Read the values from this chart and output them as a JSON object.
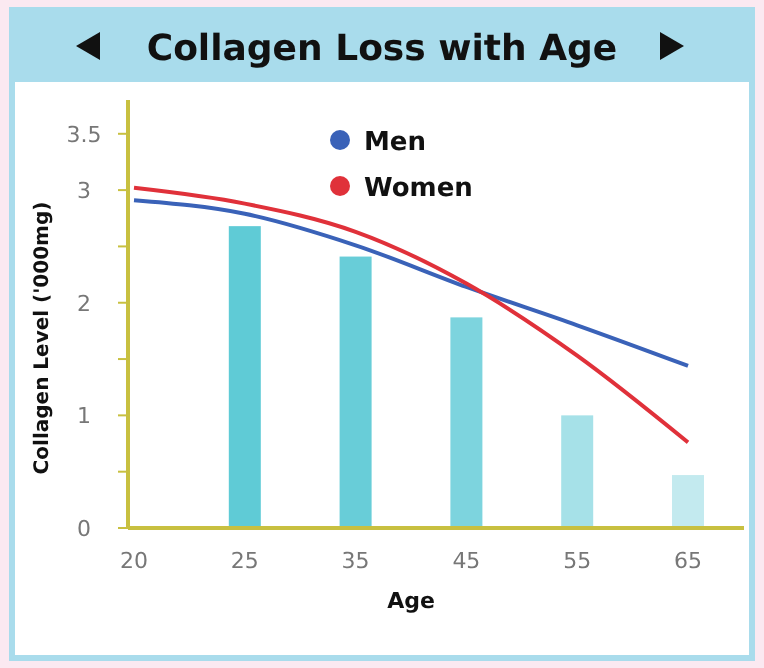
{
  "chart_data": {
    "type": "bar",
    "title": "Collagen Loss with Age",
    "xlabel": "Age",
    "ylabel": "Collagen Level ('000mg)",
    "categories": [
      "20",
      "25",
      "35",
      "45",
      "55",
      "65"
    ],
    "values": [
      null,
      2.68,
      2.41,
      1.87,
      1.0,
      0.47
    ],
    "colors": [
      null,
      "#5fcbd6",
      "#68cdd8",
      "#7dd4de",
      "#a6e1e8",
      "#c3eaef"
    ],
    "series": [
      {
        "name": "Men",
        "type": "line",
        "color": "#3a62b8",
        "values": [
          2.91,
          2.79,
          2.51,
          2.14,
          1.8,
          1.44
        ]
      },
      {
        "name": "Women",
        "type": "line",
        "color": "#e0313a",
        "values": [
          3.02,
          2.88,
          2.63,
          2.17,
          1.53,
          0.76
        ]
      }
    ],
    "ylim": [
      0,
      3.8
    ],
    "yticks": [
      0,
      {
        "value": 0.5,
        "label": null
      },
      1,
      {
        "value": 1.5,
        "label": null
      },
      2,
      {
        "value": 2.5,
        "label": null
      },
      3,
      3.5
    ],
    "legend": "top",
    "marker": "none",
    "line_style": "solid"
  }
}
